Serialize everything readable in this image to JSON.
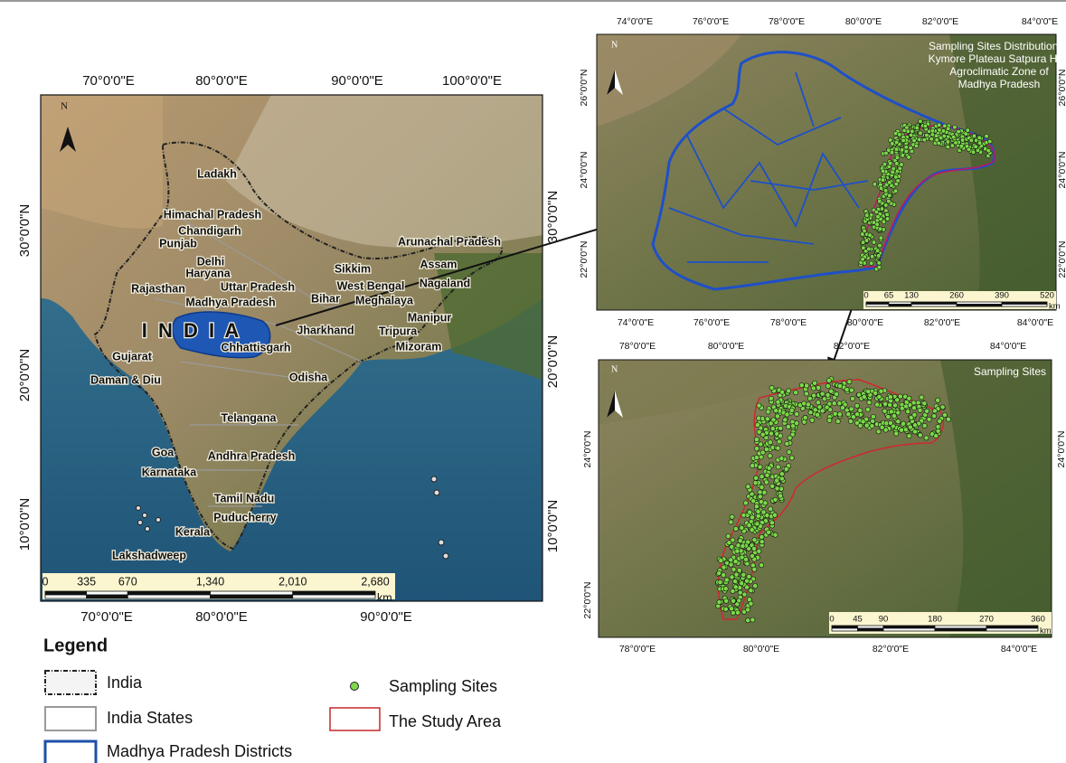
{
  "left_map": {
    "north": "N",
    "top_lon": [
      "70°0'0\"E",
      "80°0'0\"E",
      "90°0'0\"E",
      "100°0'0\"E"
    ],
    "bottom_lon": [
      "70°0'0\"E",
      "80°0'0\"E",
      "90°0'0\"E"
    ],
    "left_lat": [
      "30°0'0\"N",
      "20°0'0\"N",
      "10°0'0\"N"
    ],
    "right_lat": [
      "30°0'0\"N",
      "20°0'0\"N",
      "10°0'0\"N"
    ],
    "country": "I N D I A",
    "labels": [
      "Ladakh",
      "Himachal Pradesh",
      "Chandigarh",
      "Punjab",
      "Delhi",
      "Haryana",
      "Uttar Pradesh",
      "Rajasthan",
      "Madhya Pradesh",
      "Sikkim",
      "West Bengal",
      "Bihar",
      "Meghalaya",
      "Arunachal Pradesh",
      "Assam",
      "Nagaland",
      "Manipur",
      "Tripura",
      "Mizoram",
      "Jharkhand",
      "Chhattisgarh",
      "Gujarat",
      "Daman & Diu",
      "Odisha",
      "Telangana",
      "Goa",
      "Andhra Pradesh",
      "Karnataka",
      "Tamil Nadu",
      "Puducherry",
      "Kerala",
      "Lakshadweep"
    ],
    "scale": [
      "0",
      "335",
      "670",
      "1,340",
      "2,010",
      "2,680"
    ],
    "scale_unit": "km"
  },
  "top_map": {
    "north": "N",
    "title": [
      "Sampling Sites Distribution in",
      "Kymore Plateau Satpura Hills",
      "Agroclimatic Zone of",
      "Madhya Pradesh"
    ],
    "top_lon": [
      "74°0'0\"E",
      "76°0'0\"E",
      "78°0'0\"E",
      "80°0'0\"E",
      "82°0'0\"E",
      "84°0'0\"E"
    ],
    "bottom_lon": [
      "74°0'0\"E",
      "76°0'0\"E",
      "78°0'0\"E",
      "80°0'0\"E",
      "82°0'0\"E",
      "84°0'0\"E"
    ],
    "left_lat": [
      "26°0'0\"N",
      "24°0'0\"N",
      "22°0'0\"N"
    ],
    "right_lat": [
      "26°0'0\"N",
      "24°0'0\"N",
      "22°0'0\"N"
    ],
    "scale": [
      "0",
      "65",
      "130",
      "260",
      "390",
      "520"
    ],
    "scale_unit": "km"
  },
  "bottom_map": {
    "north": "N",
    "title": "Sampling Sites",
    "top_lon": [
      "78°0'0\"E",
      "80°0'0\"E",
      "82°0'0\"E",
      "84°0'0\"E"
    ],
    "bottom_lon": [
      "78°0'0\"E",
      "80°0'0\"E",
      "82°0'0\"E",
      "84°0'0\"E"
    ],
    "left_lat": [
      "24°0'0\"N",
      "22°0'0\"N"
    ],
    "right_lat": [
      "24°0'0\"N"
    ],
    "scale": [
      "0",
      "45",
      "90",
      "180",
      "270",
      "360"
    ],
    "scale_unit": "km"
  },
  "legend": {
    "title": "Legend",
    "items": [
      "India",
      "India States",
      "Madhya Pradesh Districts",
      "Sampling Sites",
      "The Study Area"
    ]
  }
}
